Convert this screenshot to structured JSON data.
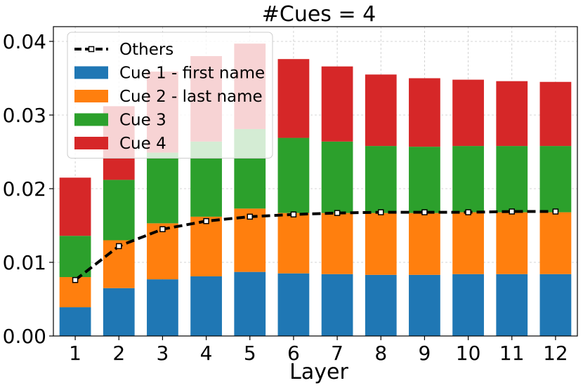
{
  "chart_data": {
    "type": "bar",
    "stacked": true,
    "title": "#Cues = 4",
    "xlabel": "Layer",
    "ylabel": "",
    "categories": [
      "1",
      "2",
      "3",
      "4",
      "5",
      "6",
      "7",
      "8",
      "9",
      "10",
      "11",
      "12"
    ],
    "ylim": [
      0,
      0.042
    ],
    "yticks": [
      "0.00",
      "0.01",
      "0.02",
      "0.03",
      "0.04"
    ],
    "ytick_values": [
      0,
      0.01,
      0.02,
      0.03,
      0.04
    ],
    "grid": true,
    "legend_position": "top-left",
    "series": [
      {
        "name": "Cue 1 - first name",
        "color": "#1f77b4",
        "values": [
          0.0039,
          0.0065,
          0.0077,
          0.0081,
          0.0087,
          0.0085,
          0.0084,
          0.0083,
          0.0083,
          0.0084,
          0.0084,
          0.0084
        ]
      },
      {
        "name": "Cue 2 - last name",
        "color": "#ff7f0e",
        "values": [
          0.0041,
          0.0065,
          0.0076,
          0.0081,
          0.0086,
          0.0082,
          0.0083,
          0.0084,
          0.0084,
          0.0084,
          0.0084,
          0.0084
        ]
      },
      {
        "name": "Cue 3",
        "color": "#2ca02c",
        "values": [
          0.0056,
          0.0082,
          0.0096,
          0.0102,
          0.0108,
          0.0102,
          0.0097,
          0.0091,
          0.009,
          0.009,
          0.009,
          0.009
        ]
      },
      {
        "name": "Cue 4",
        "color": "#d62728",
        "values": [
          0.0079,
          0.01,
          0.011,
          0.0116,
          0.0116,
          0.0107,
          0.0102,
          0.0097,
          0.0093,
          0.009,
          0.0088,
          0.0087
        ]
      }
    ],
    "line": {
      "name": "Others",
      "color": "#000000",
      "style": "dashed",
      "marker": "square",
      "values": [
        0.0076,
        0.0122,
        0.0145,
        0.0156,
        0.0162,
        0.0165,
        0.0167,
        0.0168,
        0.0168,
        0.0168,
        0.0169,
        0.0169
      ]
    }
  }
}
